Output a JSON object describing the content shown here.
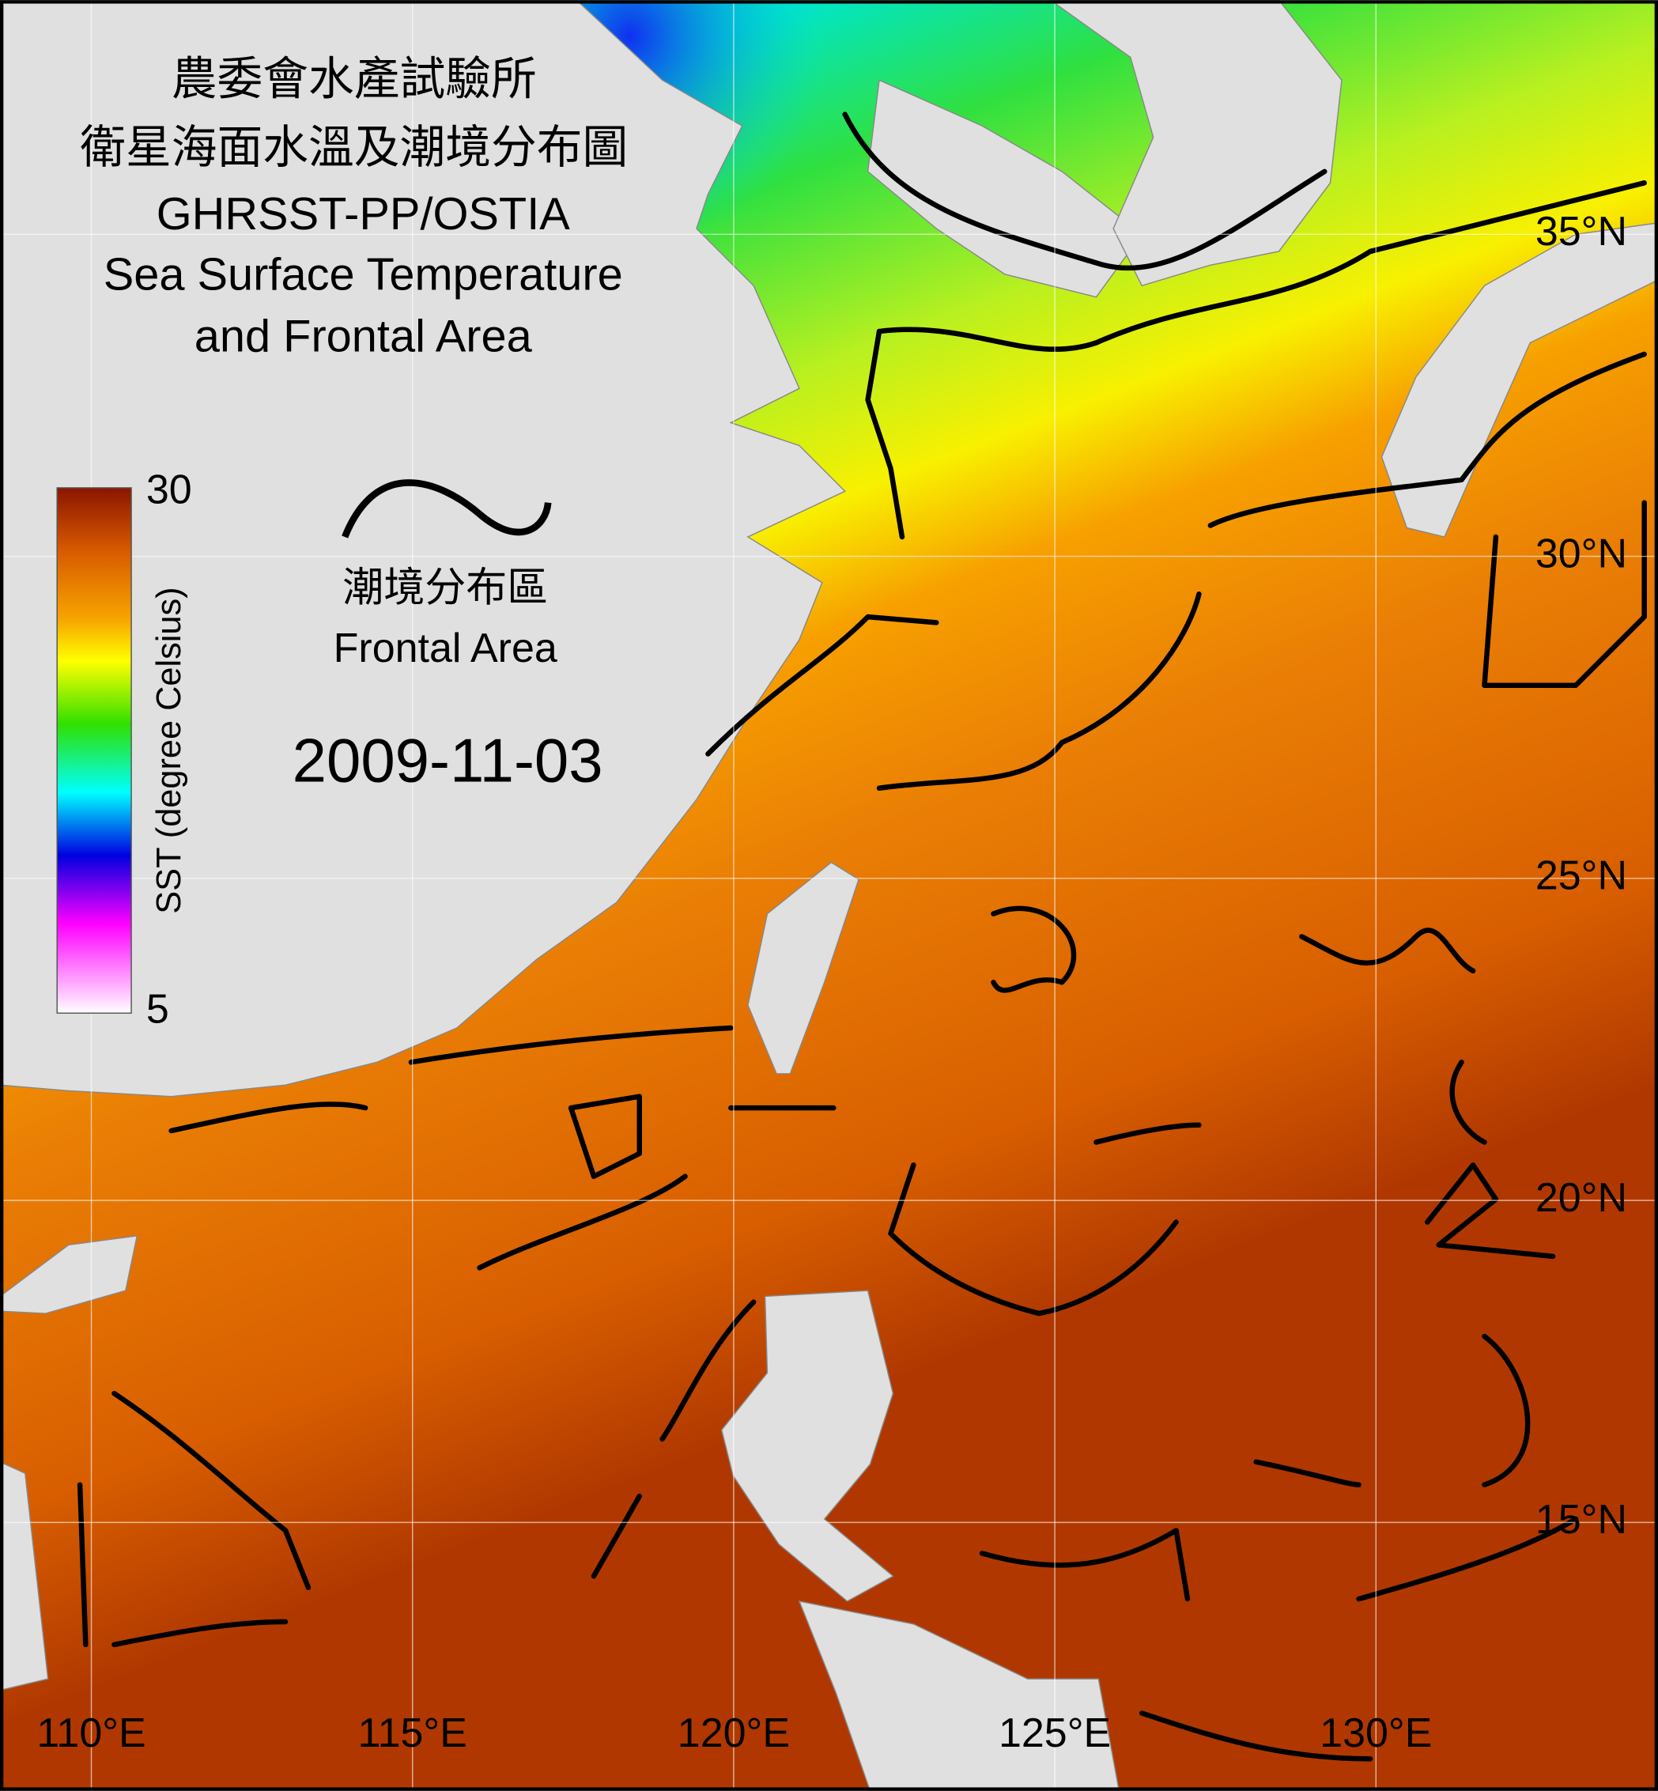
{
  "title": {
    "zh_org": "農委會水產試驗所",
    "zh_title": "衛星海面水溫及潮境分布圖",
    "en_line1": "GHRSST-PP/OSTIA",
    "en_line2": "Sea Surface Temperature",
    "en_line3": "and Frontal Area"
  },
  "colorbar": {
    "label": "SST (degree Celsius)",
    "max": 30,
    "min": 5
  },
  "legend": {
    "zh": "潮境分布區",
    "en": "Frontal Area"
  },
  "date": "2009-11-03",
  "map": {
    "lat_labels": [
      "35°N",
      "30°N",
      "25°N",
      "20°N",
      "15°N"
    ],
    "lon_labels": [
      "110°E",
      "115°E",
      "120°E",
      "125°E",
      "130°E"
    ]
  }
}
